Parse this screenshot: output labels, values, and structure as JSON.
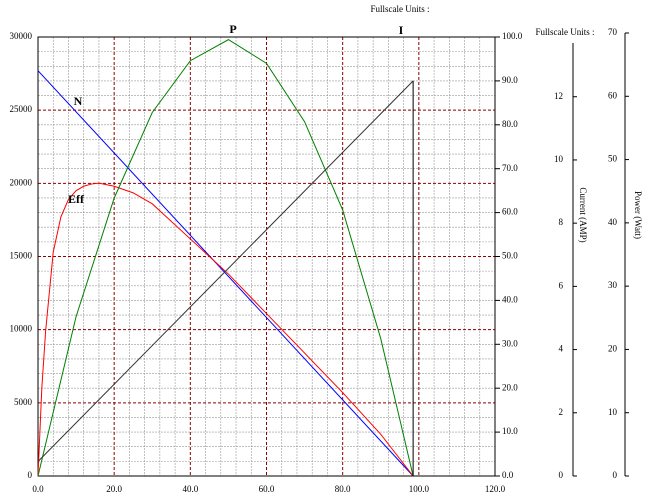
{
  "chart_data": {
    "type": "line",
    "header_left": "Fullscale Units :",
    "header_right": "Fullscale Units :",
    "xlim": [
      0,
      120
    ],
    "xticks": [
      {
        "value": 0,
        "label": "0.0"
      },
      {
        "value": 20,
        "label": "20.0"
      },
      {
        "value": 40,
        "label": "40.0"
      },
      {
        "value": 60,
        "label": "60.0"
      },
      {
        "value": 80,
        "label": "80.0"
      },
      {
        "value": 100,
        "label": "100.0"
      },
      {
        "value": 120,
        "label": "120.0"
      }
    ],
    "ylim": [
      0,
      30000
    ],
    "yticks": [
      0,
      5000,
      10000,
      15000,
      20000,
      25000,
      30000
    ],
    "y2lim": [
      0,
      100
    ],
    "y2ticks": [
      {
        "value": 0,
        "label": "0.0"
      },
      {
        "value": 10,
        "label": "10.0"
      },
      {
        "value": 20,
        "label": "20.0"
      },
      {
        "value": 30,
        "label": "30.0"
      },
      {
        "value": 40,
        "label": "40.0"
      },
      {
        "value": 50,
        "label": "50.0"
      },
      {
        "value": 60,
        "label": "60.0"
      },
      {
        "value": 70,
        "label": "70.0"
      },
      {
        "value": 80,
        "label": "80.0"
      },
      {
        "value": 90,
        "label": "90.0"
      },
      {
        "value": 100,
        "label": "100.0"
      }
    ],
    "current_axis": {
      "label": "Current (AMP)",
      "lim": [
        0,
        13.7
      ],
      "ticks": [
        0,
        2,
        4,
        6,
        8,
        10,
        12
      ]
    },
    "power_axis": {
      "label": "Power (Watt)",
      "lim": [
        0,
        70
      ],
      "ticks": [
        0,
        10,
        20,
        30,
        40,
        50,
        60,
        70
      ]
    },
    "grid": true,
    "series": [
      {
        "name": "N",
        "color": "#0000ff",
        "x": [
          0,
          98.5
        ],
        "values": [
          27700,
          0
        ]
      },
      {
        "name": "Eff",
        "color": "#ff0000",
        "axis": "y2",
        "x": [
          0,
          1,
          2,
          4,
          6,
          8,
          10,
          12,
          14,
          16,
          20,
          25,
          30,
          40,
          50,
          60,
          70,
          80,
          90,
          98.5
        ],
        "values": [
          0,
          20,
          33,
          51,
          59,
          63,
          65,
          66,
          66.5,
          66.7,
          66,
          64.5,
          62,
          54,
          46,
          37,
          28,
          19,
          9.5,
          0
        ]
      },
      {
        "name": "P",
        "color": "#008000",
        "axis": "y2",
        "x": [
          0,
          10,
          20,
          30,
          40,
          50,
          60,
          70,
          80,
          90,
          98.5
        ],
        "values": [
          0,
          36.3,
          63.3,
          82.8,
          94.6,
          99.4,
          94,
          80.7,
          60.6,
          31.3,
          0
        ]
      },
      {
        "name": "I",
        "color": "#333333",
        "axis": "y2",
        "x": [
          0,
          98.5
        ],
        "values": [
          3.3,
          90
        ]
      }
    ]
  }
}
